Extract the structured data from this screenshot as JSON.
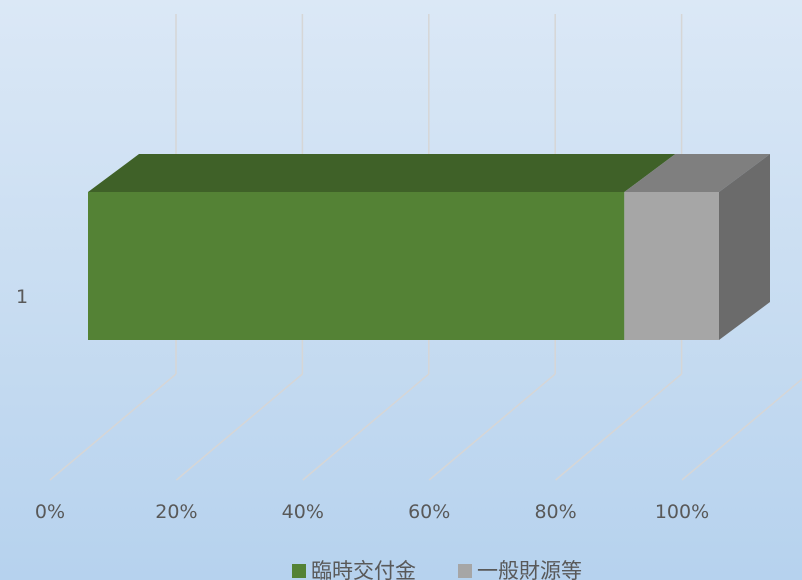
{
  "chart_data": {
    "type": "bar",
    "orientation": "horizontal",
    "stacking": "percent-stacked",
    "style": "3d",
    "categories": [
      "1"
    ],
    "series": [
      {
        "name": "臨時交付金",
        "values": [
          85
        ],
        "color": "#548235",
        "color_top": "#3f6128",
        "color_side": "#3a5a24"
      },
      {
        "name": "一般財源等",
        "values": [
          15
        ],
        "color": "#a6a6a6",
        "color_top": "#7f7f7f",
        "color_side": "#6b6b6b"
      }
    ],
    "x_ticks": [
      "0%",
      "20%",
      "40%",
      "60%",
      "80%",
      "100%"
    ],
    "xlim": [
      0,
      100
    ],
    "gridlines": true,
    "legend_position": "bottom"
  }
}
